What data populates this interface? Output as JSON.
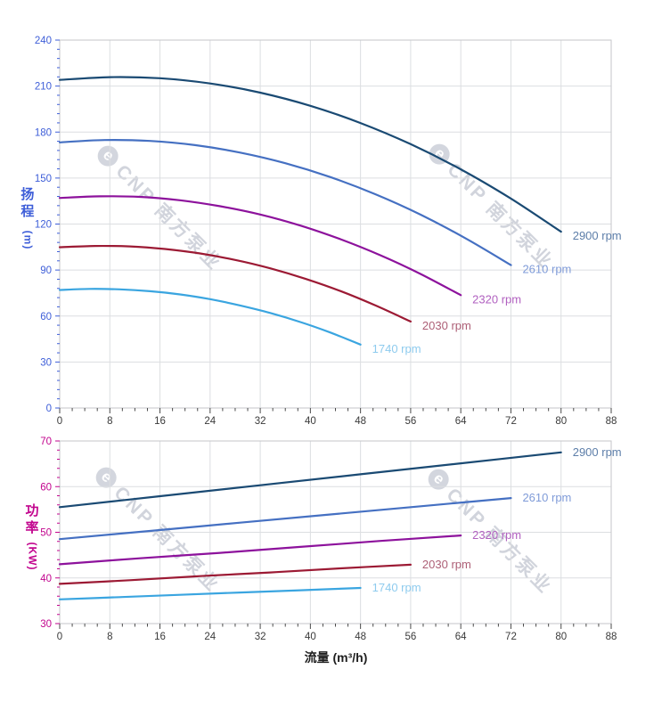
{
  "page": {
    "background": "#ffffff"
  },
  "watermark": {
    "logo_glyph": "e",
    "text": "CNP 南方泵业",
    "color": "#c9cdd6"
  },
  "x_axis_tick_color": "#3a3a3a",
  "chart_data": [
    {
      "type": "line",
      "title": "",
      "ylabel": "扬程 (m)",
      "ylabel_chars": "扬程",
      "ylabel_unit": "(m)",
      "xlabel": "",
      "xlim": [
        0,
        88
      ],
      "ylim": [
        0,
        240
      ],
      "x_ticks": [
        0,
        8,
        16,
        24,
        32,
        40,
        48,
        56,
        64,
        72,
        80,
        88
      ],
      "y_ticks": [
        0,
        30,
        60,
        90,
        120,
        150,
        180,
        210,
        240
      ],
      "x_minor_step": 2,
      "y_minor_step": 6,
      "grid": true,
      "legend_position": "end-of-line",
      "axis_color": "#3e5ed8",
      "series": [
        {
          "name": "2900 rpm",
          "color": "#1a4a73",
          "label_color": "#5d7ea9",
          "x": [
            0,
            8,
            16,
            24,
            32,
            40,
            48,
            56,
            64,
            72,
            80
          ],
          "y": [
            214,
            215.8,
            215.1,
            211.7,
            205.7,
            197.1,
            185.9,
            172.1,
            155.7,
            136.6,
            115
          ]
        },
        {
          "name": "2610 rpm",
          "color": "#4570c2",
          "label_color": "#7f9bd8",
          "x": [
            0,
            7.2,
            14.4,
            21.6,
            28.8,
            36,
            43.2,
            50.4,
            57.6,
            64.8,
            72
          ],
          "y": [
            173.3,
            174.8,
            174.2,
            171.5,
            166.6,
            159.7,
            150.6,
            139.4,
            126.1,
            110.6,
            93.2
          ]
        },
        {
          "name": "2320 rpm",
          "color": "#8d129c",
          "label_color": "#b161c0",
          "x": [
            0,
            6.4,
            12.8,
            19.2,
            25.6,
            32,
            38.4,
            44.8,
            51.2,
            57.6,
            64
          ],
          "y": [
            137,
            138.1,
            137.7,
            135.5,
            131.6,
            126.2,
            119,
            110.1,
            99.6,
            87.4,
            73.6
          ]
        },
        {
          "name": "2030 rpm",
          "color": "#9c1a34",
          "label_color": "#ad5f76",
          "x": [
            0,
            5.6,
            11.2,
            16.8,
            22.4,
            28,
            33.6,
            39.2,
            44.8,
            50.4,
            56
          ],
          "y": [
            104.9,
            105.7,
            105.4,
            103.7,
            100.8,
            96.6,
            91.1,
            84.3,
            76.3,
            66.9,
            56.4
          ]
        },
        {
          "name": "1740 rpm",
          "color": "#3aa5e0",
          "label_color": "#8ecbee",
          "x": [
            0,
            4.8,
            9.6,
            14.4,
            19.2,
            24,
            28.8,
            33.6,
            38.4,
            43.2,
            48
          ],
          "y": [
            77,
            77.7,
            77.4,
            76.2,
            74.1,
            71,
            66.9,
            62,
            56.1,
            49.2,
            41.4
          ]
        }
      ]
    },
    {
      "type": "line",
      "title": "",
      "ylabel": "功率 (KW)",
      "ylabel_chars": "功率",
      "ylabel_unit": "(KW)",
      "xlabel": "流量 (m³/h)",
      "xlim": [
        0,
        88
      ],
      "ylim": [
        30,
        70
      ],
      "x_ticks": [
        0,
        8,
        16,
        24,
        32,
        40,
        48,
        56,
        64,
        72,
        80,
        88
      ],
      "y_ticks": [
        30,
        40,
        50,
        60,
        70
      ],
      "x_minor_step": 2,
      "y_minor_step": 2,
      "grid": true,
      "legend_position": "end-of-line",
      "axis_color": "#c2058e",
      "series": [
        {
          "name": "2900 rpm",
          "color": "#1a4a73",
          "label_color": "#5d7ea9",
          "x": [
            0,
            16,
            32,
            48,
            64,
            80
          ],
          "y": [
            55.5,
            57.9,
            60.3,
            62.7,
            65.1,
            67.5
          ]
        },
        {
          "name": "2610 rpm",
          "color": "#4570c2",
          "label_color": "#7f9bd8",
          "x": [
            0,
            14.4,
            28.8,
            43.2,
            57.6,
            72
          ],
          "y": [
            48.5,
            50.3,
            52.1,
            53.9,
            55.7,
            57.5
          ]
        },
        {
          "name": "2320 rpm",
          "color": "#8d129c",
          "label_color": "#b161c0",
          "x": [
            0,
            12.8,
            25.6,
            38.4,
            51.2,
            64
          ],
          "y": [
            43,
            44.3,
            45.5,
            46.8,
            48.1,
            49.3
          ]
        },
        {
          "name": "2030 rpm",
          "color": "#9c1a34",
          "label_color": "#ad5f76",
          "x": [
            0,
            11.2,
            22.4,
            33.6,
            44.8,
            56
          ],
          "y": [
            38.7,
            39.5,
            40.4,
            41.2,
            42.1,
            42.9
          ]
        },
        {
          "name": "1740 rpm",
          "color": "#3aa5e0",
          "label_color": "#8ecbee",
          "x": [
            0,
            9.6,
            19.2,
            28.8,
            38.4,
            48
          ],
          "y": [
            35.3,
            35.8,
            36.3,
            36.8,
            37.3,
            37.8
          ]
        }
      ]
    }
  ]
}
